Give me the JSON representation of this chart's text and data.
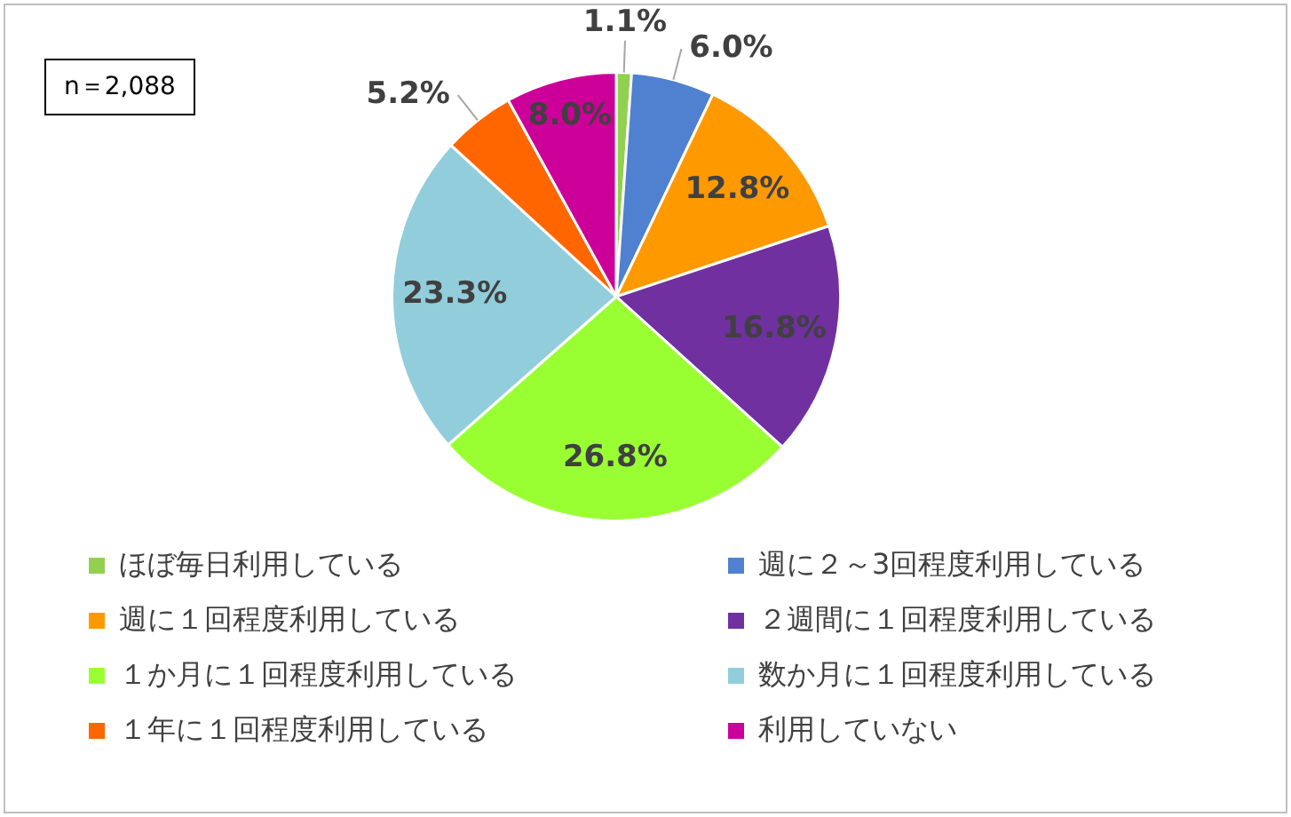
{
  "chart_data": {
    "type": "pie",
    "categories": [
      "ほぼ毎日利用している",
      "週に２～3回程度利用している",
      "週に１回程度利用している",
      "２週間に１回程度利用している",
      "１か月に１回程度利用している",
      "数か月に１回程度利用している",
      "１年に１回程度利用している",
      "利用していない"
    ],
    "values": [
      1.1,
      6.0,
      12.8,
      16.8,
      26.8,
      23.3,
      5.2,
      8.0
    ],
    "colors": [
      "#92d050",
      "#4f81d0",
      "#ff9900",
      "#7030a0",
      "#99ff33",
      "#92cddc",
      "#ff6600",
      "#cc0099"
    ],
    "value_labels": [
      "1.1%",
      "6.0%",
      "12.8%",
      "16.8%",
      "26.8%",
      "23.3%",
      "5.2%",
      "8.0%"
    ],
    "annotations": [
      "n＝2,088"
    ],
    "legend": "bottom"
  }
}
